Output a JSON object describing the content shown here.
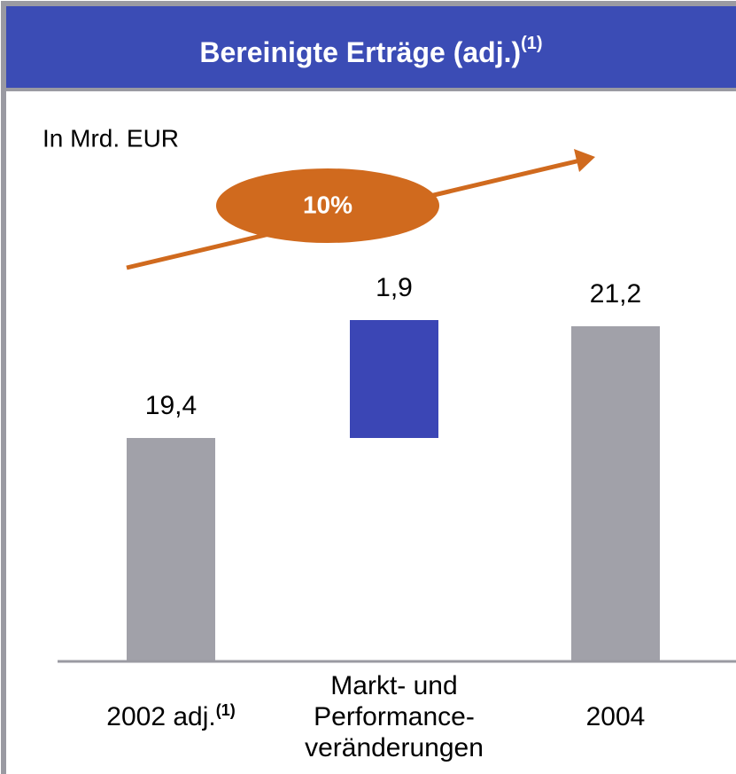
{
  "chart_data": {
    "type": "waterfall",
    "title": "Bereinigte Erträge (adj.)",
    "title_note": "(1)",
    "unit_label": "In Mrd. EUR",
    "annotation": "10%",
    "categories": [
      "2002 adj.",
      "Markt- und Performance-veränderungen",
      "2004"
    ],
    "category_notes": [
      "(1)",
      null,
      null
    ],
    "values": [
      19.4,
      1.9,
      21.2
    ],
    "value_labels": [
      "19,4",
      "1,9",
      "21,2"
    ],
    "measure": [
      "absolute",
      "relative",
      "absolute"
    ],
    "colors": [
      "#a1a1a9",
      "#3b46b5",
      "#a1a1a9"
    ],
    "title_color": "#3b4cb5",
    "annotation_color": "#d06a1e",
    "ylim": [
      15.8,
      23
    ]
  }
}
